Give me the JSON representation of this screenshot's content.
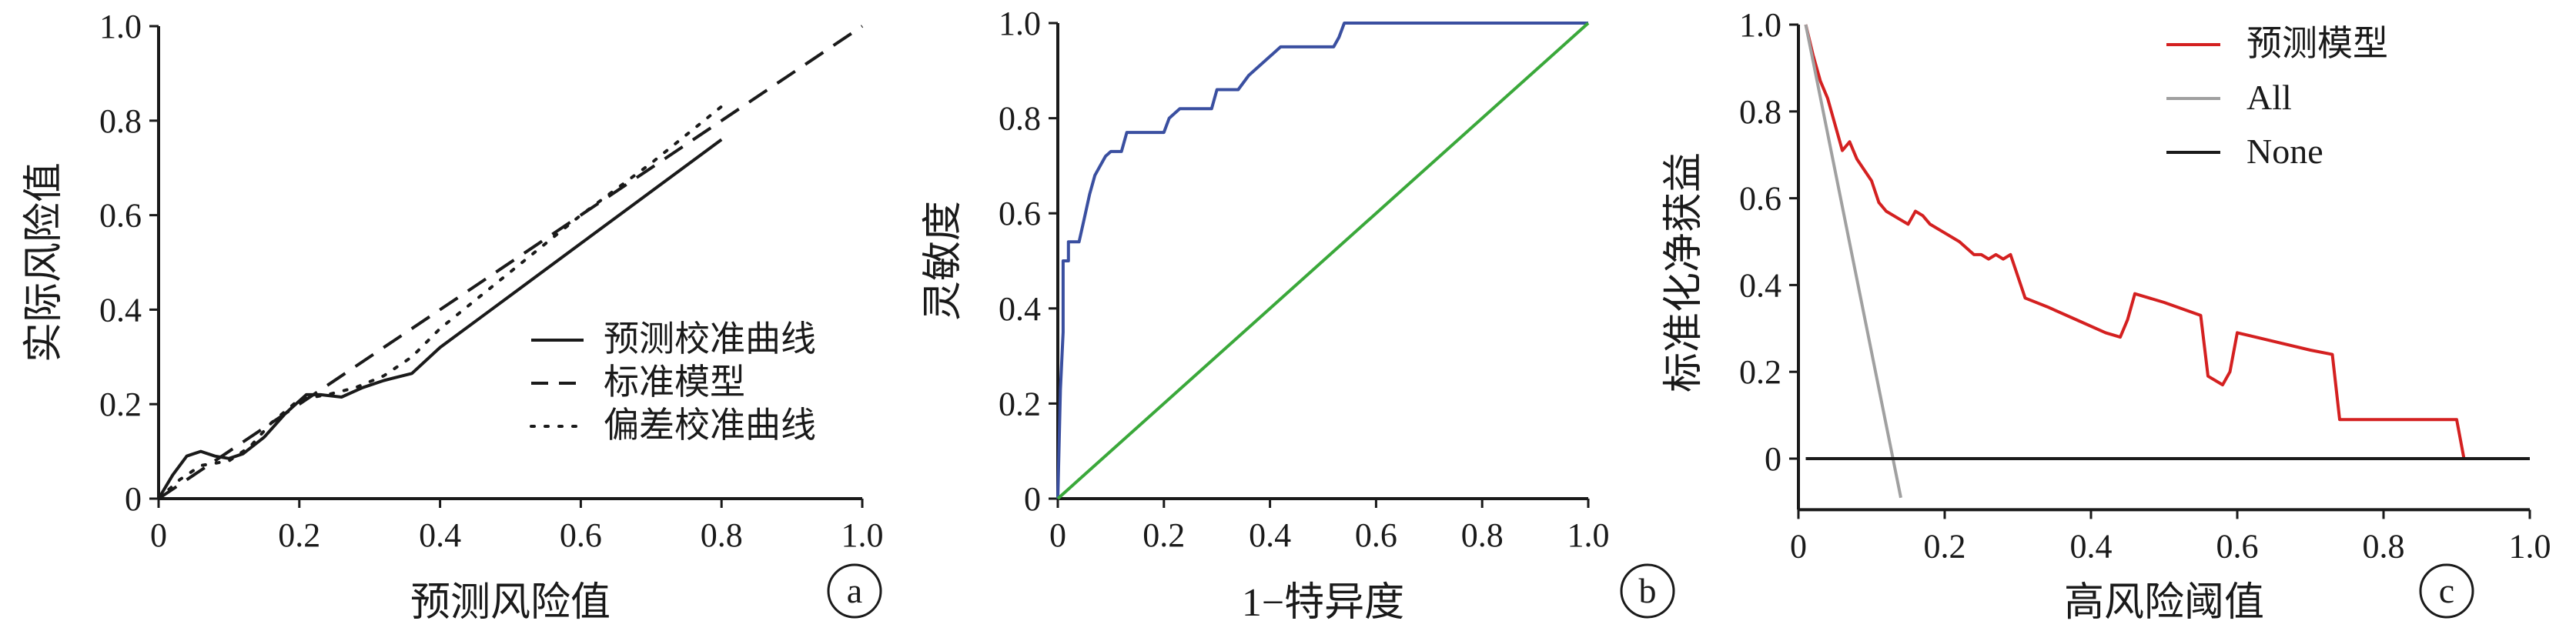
{
  "chart_data": [
    {
      "panel": "a",
      "type": "line",
      "xlabel": "预测风险值",
      "ylabel": "实际风险值",
      "xlim": [
        0,
        1.0
      ],
      "ylim": [
        0,
        1.0
      ],
      "xticks": [
        "0",
        "0.2",
        "0.4",
        "0.6",
        "0.8",
        "1.0"
      ],
      "yticks": [
        "0",
        "0.2",
        "0.4",
        "0.6",
        "0.8",
        "1.0"
      ],
      "legend_position": "bottom-right",
      "series": [
        {
          "name": "预测校准曲线",
          "style": "solid",
          "color": "#1a1a1a",
          "x": [
            0,
            0.02,
            0.04,
            0.06,
            0.08,
            0.1,
            0.12,
            0.15,
            0.18,
            0.21,
            0.23,
            0.26,
            0.29,
            0.32,
            0.36,
            0.4,
            0.5,
            0.6,
            0.7,
            0.8
          ],
          "y": [
            0,
            0.05,
            0.09,
            0.1,
            0.09,
            0.085,
            0.095,
            0.13,
            0.18,
            0.22,
            0.22,
            0.215,
            0.235,
            0.25,
            0.265,
            0.32,
            0.43,
            0.54,
            0.65,
            0.76
          ]
        },
        {
          "name": "标准模型",
          "style": "dashed",
          "color": "#1a1a1a",
          "x": [
            0,
            1.0
          ],
          "y": [
            0,
            1.0
          ]
        },
        {
          "name": "偏差校准曲线",
          "style": "dotted",
          "color": "#1a1a1a",
          "x": [
            0,
            0.03,
            0.06,
            0.08,
            0.1,
            0.13,
            0.16,
            0.2,
            0.24,
            0.28,
            0.32,
            0.36,
            0.4,
            0.5,
            0.6,
            0.7,
            0.8
          ],
          "y": [
            0,
            0.04,
            0.07,
            0.075,
            0.08,
            0.11,
            0.16,
            0.21,
            0.22,
            0.235,
            0.26,
            0.3,
            0.36,
            0.48,
            0.6,
            0.71,
            0.83
          ]
        }
      ],
      "tag": "a"
    },
    {
      "panel": "b",
      "type": "line",
      "xlabel": "1−特异度",
      "ylabel": "灵敏度",
      "xlim": [
        0,
        1.0
      ],
      "ylim": [
        0,
        1.0
      ],
      "xticks": [
        "0",
        "0.2",
        "0.4",
        "0.6",
        "0.8",
        "1.0"
      ],
      "yticks": [
        "0",
        "0.2",
        "0.4",
        "0.6",
        "0.8",
        "1.0"
      ],
      "series": [
        {
          "name": "",
          "style": "solid",
          "color": "#3a4fa0",
          "x": [
            0,
            0.005,
            0.01,
            0.01,
            0.02,
            0.02,
            0.03,
            0.04,
            0.05,
            0.06,
            0.07,
            0.08,
            0.09,
            0.1,
            0.12,
            0.13,
            0.15,
            0.18,
            0.2,
            0.21,
            0.23,
            0.25,
            0.27,
            0.29,
            0.3,
            0.32,
            0.34,
            0.36,
            0.38,
            0.4,
            0.42,
            0.45,
            0.48,
            0.5,
            0.52,
            0.53,
            0.54,
            0.56,
            0.6,
            0.7,
            0.8,
            0.9,
            1.0
          ],
          "y": [
            0,
            0.23,
            0.35,
            0.5,
            0.5,
            0.54,
            0.54,
            0.54,
            0.59,
            0.64,
            0.68,
            0.7,
            0.72,
            0.73,
            0.73,
            0.77,
            0.77,
            0.77,
            0.77,
            0.8,
            0.82,
            0.82,
            0.82,
            0.82,
            0.86,
            0.86,
            0.86,
            0.89,
            0.91,
            0.93,
            0.95,
            0.95,
            0.95,
            0.95,
            0.95,
            0.97,
            1.0,
            1.0,
            1.0,
            1.0,
            1.0,
            1.0,
            1.0
          ]
        },
        {
          "name": "",
          "style": "solid",
          "color": "#3aa83a",
          "x": [
            0,
            1.0
          ],
          "y": [
            0,
            1.0
          ]
        }
      ],
      "tag": "b"
    },
    {
      "panel": "c",
      "type": "line",
      "xlabel": "高风险阈值",
      "ylabel": "标准化净获益",
      "xlim": [
        0,
        1.0
      ],
      "ylim": [
        -0.1,
        1.0
      ],
      "xticks": [
        "0",
        "0.2",
        "0.4",
        "0.6",
        "0.8",
        "1.0"
      ],
      "yticks": [
        "0",
        "0.2",
        "0.4",
        "0.6",
        "0.8",
        "1.0"
      ],
      "legend_position": "top-right",
      "series": [
        {
          "name": "预测模型",
          "style": "solid",
          "color": "#d42020",
          "x": [
            0.01,
            0.02,
            0.03,
            0.04,
            0.05,
            0.06,
            0.07,
            0.08,
            0.1,
            0.11,
            0.12,
            0.14,
            0.15,
            0.16,
            0.17,
            0.18,
            0.2,
            0.22,
            0.24,
            0.25,
            0.26,
            0.27,
            0.28,
            0.29,
            0.31,
            0.34,
            0.38,
            0.42,
            0.44,
            0.45,
            0.46,
            0.5,
            0.55,
            0.56,
            0.58,
            0.59,
            0.6,
            0.65,
            0.7,
            0.73,
            0.74,
            0.76,
            0.8,
            0.85,
            0.9,
            0.91,
            0.95,
            1.0
          ],
          "y": [
            1.0,
            0.93,
            0.87,
            0.83,
            0.77,
            0.71,
            0.73,
            0.69,
            0.64,
            0.59,
            0.57,
            0.55,
            0.54,
            0.57,
            0.56,
            0.54,
            0.52,
            0.5,
            0.47,
            0.47,
            0.46,
            0.47,
            0.46,
            0.47,
            0.37,
            0.35,
            0.32,
            0.29,
            0.28,
            0.32,
            0.38,
            0.36,
            0.33,
            0.19,
            0.17,
            0.2,
            0.29,
            0.27,
            0.25,
            0.24,
            0.09,
            0.09,
            0.09,
            0.09,
            0.09,
            0.0,
            0.0,
            0.0
          ]
        },
        {
          "name": "All",
          "style": "solid",
          "color": "#a0a0a0",
          "x": [
            0.01,
            0.14
          ],
          "y": [
            1.0,
            -0.09
          ]
        },
        {
          "name": "None",
          "style": "solid",
          "color": "#1a1a1a",
          "x": [
            0.01,
            1.0
          ],
          "y": [
            0,
            0
          ]
        }
      ],
      "tag": "c"
    }
  ]
}
